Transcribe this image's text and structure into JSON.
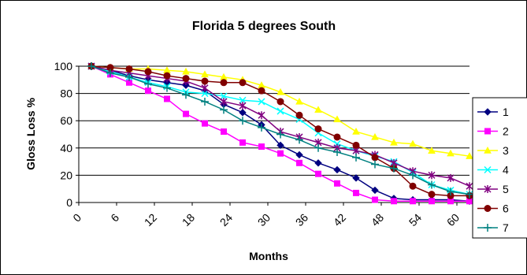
{
  "chart_data": {
    "type": "line",
    "title": "Florida 5 degrees South",
    "xlabel": "Months",
    "ylabel": "Gloss Loss %",
    "xlim": [
      0,
      62
    ],
    "ylim": [
      0,
      100
    ],
    "x_ticks": [
      "0",
      "6",
      "12",
      "18",
      "24",
      "30",
      "36",
      "42",
      "48",
      "54",
      "60"
    ],
    "y_ticks": [
      "0",
      "20",
      "40",
      "60",
      "80",
      "100"
    ],
    "grid": "horizontal",
    "legend_position": "right",
    "x": [
      2,
      5,
      8,
      11,
      14,
      17,
      20,
      23,
      26,
      29,
      32,
      35,
      38,
      41,
      44,
      47,
      50,
      53,
      56,
      59,
      62
    ],
    "series": [
      {
        "name": "1",
        "color": "#000080",
        "marker": "diamond",
        "values": [
          100,
          97,
          93,
          90,
          88,
          86,
          82,
          72,
          66,
          57,
          42,
          35,
          29,
          24,
          18,
          9,
          3,
          2,
          2,
          2,
          1
        ]
      },
      {
        "name": "2",
        "color": "#ff00ff",
        "marker": "square",
        "values": [
          100,
          94,
          88,
          82,
          76,
          65,
          58,
          52,
          44,
          41,
          36,
          29,
          21,
          14,
          7,
          2,
          1,
          1,
          1,
          1,
          1
        ]
      },
      {
        "name": "3",
        "color": "#ffff00",
        "marker": "triangle",
        "values": [
          100,
          99,
          98,
          98,
          97,
          96,
          94,
          92,
          90,
          86,
          81,
          74,
          68,
          61,
          52,
          48,
          44,
          43,
          38,
          36,
          34
        ]
      },
      {
        "name": "4",
        "color": "#00ffff",
        "marker": "x",
        "values": [
          100,
          96,
          92,
          88,
          85,
          81,
          80,
          78,
          75,
          74,
          67,
          61,
          51,
          43,
          38,
          34,
          30,
          22,
          13,
          9,
          6
        ]
      },
      {
        "name": "5",
        "color": "#800080",
        "marker": "star",
        "values": [
          100,
          97,
          95,
          93,
          91,
          89,
          84,
          74,
          71,
          64,
          52,
          48,
          44,
          40,
          38,
          35,
          29,
          23,
          20,
          18,
          12
        ]
      },
      {
        "name": "6",
        "color": "#800000",
        "marker": "circle",
        "values": [
          100,
          99,
          98,
          96,
          93,
          91,
          89,
          88,
          88,
          82,
          74,
          64,
          54,
          48,
          42,
          33,
          25,
          12,
          6,
          5,
          5
        ]
      },
      {
        "name": "7",
        "color": "#008080",
        "marker": "plus",
        "values": [
          100,
          95,
          92,
          87,
          84,
          79,
          74,
          68,
          60,
          55,
          50,
          46,
          40,
          37,
          33,
          28,
          25,
          20,
          13,
          8,
          6
        ]
      }
    ]
  }
}
